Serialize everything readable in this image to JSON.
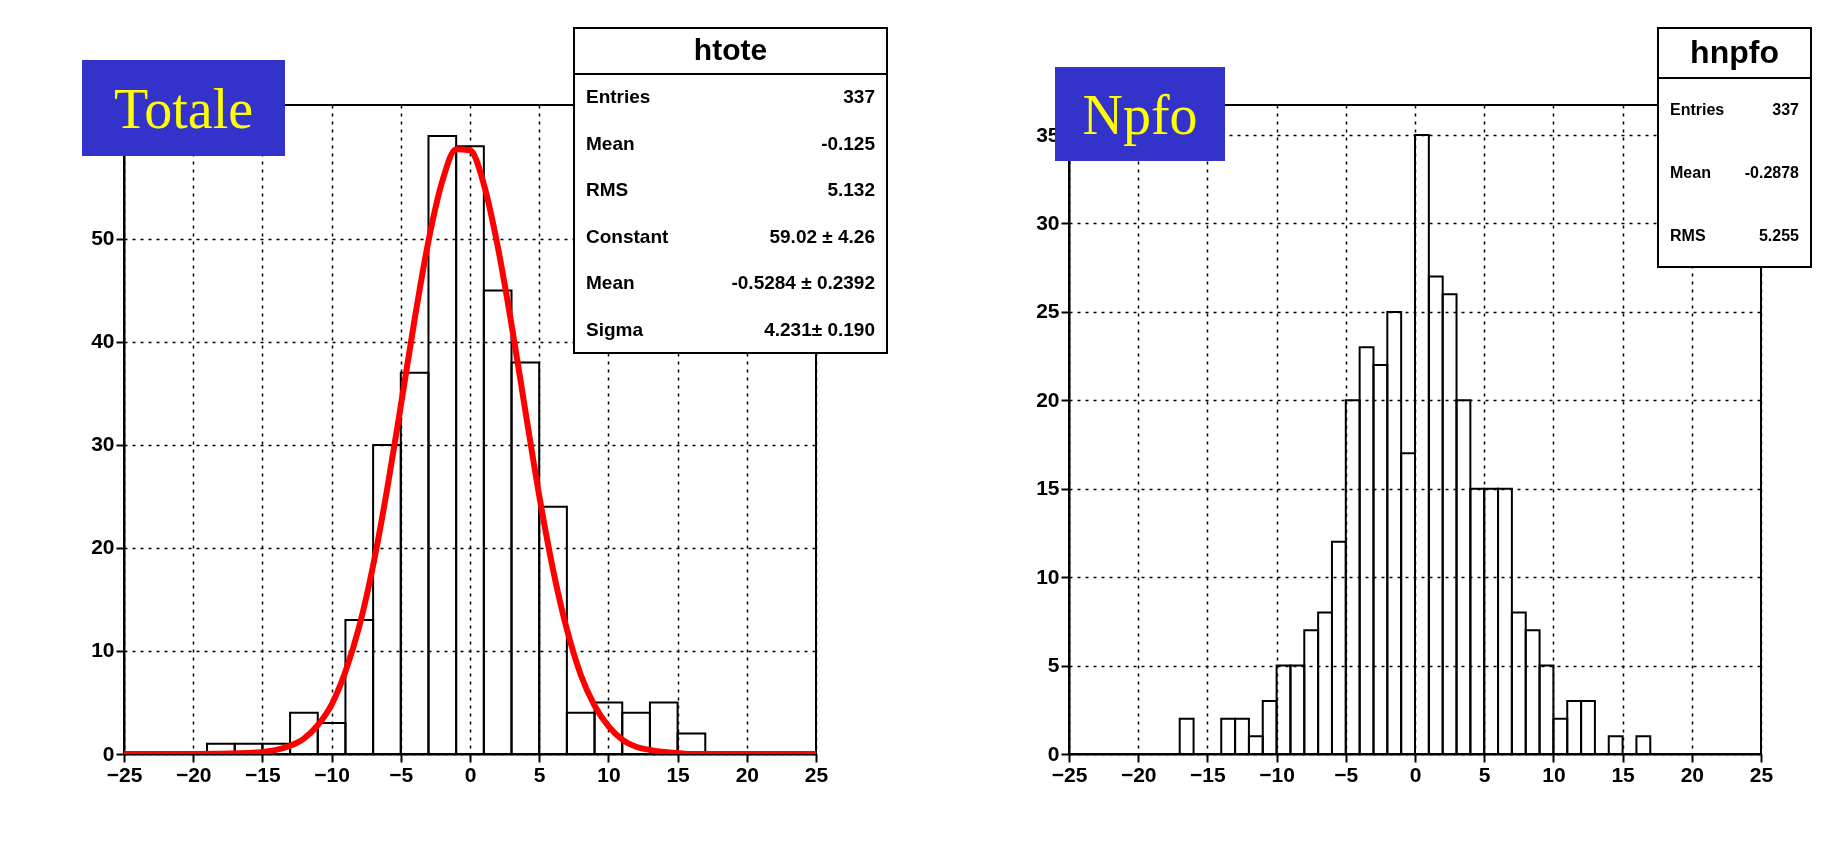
{
  "chart_data": [
    {
      "type": "histogram",
      "title": "Totale",
      "bins": [
        -25,
        -23,
        -21,
        -19,
        -17,
        -15,
        -13,
        -11,
        -9,
        -7,
        -5,
        -3,
        -1,
        1,
        3,
        5,
        7,
        9,
        11,
        13,
        15,
        17,
        19,
        21,
        23,
        25
      ],
      "values": [
        0,
        0,
        0,
        1,
        1,
        1,
        4,
        3,
        13,
        30,
        37,
        60,
        59,
        45,
        38,
        24,
        4,
        5,
        4,
        5,
        2,
        0,
        0,
        0,
        0
      ],
      "color": "#000000",
      "series": [
        {
          "type": "line",
          "color": "#ff0000",
          "x": [
            -25,
            -20,
            -16,
            -15,
            -14,
            -13,
            -12,
            -11,
            -10,
            -9,
            -8,
            -7,
            -6,
            -5,
            -4,
            -3,
            -2,
            -1,
            0,
            1,
            2,
            3,
            4,
            5,
            6,
            7,
            8,
            9,
            10,
            11,
            12,
            13,
            14,
            15,
            16,
            20,
            25
          ],
          "values": [
            0,
            0,
            0.1,
            0.2,
            0.4,
            0.8,
            1.5,
            2.8,
            4.8,
            8.0,
            12.4,
            18.3,
            25.6,
            33.8,
            42.2,
            49.8,
            55.6,
            58.7,
            58.6,
            55.3,
            49.3,
            41.7,
            33.3,
            25.1,
            17.9,
            12.1,
            7.7,
            4.7,
            2.7,
            1.4,
            0.7,
            0.4,
            0.2,
            0.1,
            0,
            0,
            0
          ]
        }
      ],
      "xlim": [
        -25,
        25
      ],
      "xticks": [
        -25,
        -20,
        -15,
        -10,
        -5,
        0,
        5,
        10,
        15,
        20,
        25
      ],
      "ylim": [
        0,
        63
      ],
      "yticks": [
        0,
        10,
        20,
        30,
        40,
        50
      ],
      "grid": true,
      "annotations": [
        "htote",
        "Entries 337",
        "Mean -0.125",
        "RMS 5.132",
        "Constant 59.02 ± 4.26",
        "Mean -0.5284 ± 0.2392",
        "Sigma 4.231± 0.190"
      ]
    },
    {
      "type": "histogram",
      "title": "Npfo",
      "bins": [
        -25,
        -24,
        -23,
        -22,
        -21,
        -20,
        -19,
        -18,
        -17,
        -16,
        -15,
        -14,
        -13,
        -12,
        -11,
        -10,
        -9,
        -8,
        -7,
        -6,
        -5,
        -4,
        -3,
        -2,
        -1,
        0,
        1,
        2,
        3,
        4,
        5,
        6,
        7,
        8,
        9,
        10,
        11,
        12,
        13,
        14,
        15,
        16,
        17,
        18,
        19,
        20,
        21,
        22,
        23,
        24,
        25
      ],
      "values": [
        0,
        0,
        0,
        0,
        0,
        0,
        0,
        0,
        2,
        0,
        0,
        2,
        2,
        1,
        3,
        5,
        5,
        7,
        8,
        12,
        20,
        23,
        22,
        25,
        17,
        35,
        27,
        26,
        20,
        15,
        15,
        15,
        8,
        7,
        5,
        2,
        3,
        3,
        0,
        1,
        0,
        1,
        0,
        0,
        0,
        0,
        0,
        0,
        0,
        0
      ],
      "color": "#000000",
      "xlim": [
        -25,
        25
      ],
      "xticks": [
        -25,
        -20,
        -15,
        -10,
        -5,
        0,
        5,
        10,
        15,
        20,
        25
      ],
      "ylim": [
        0,
        36.7
      ],
      "yticks": [
        0,
        5,
        10,
        15,
        20,
        25,
        30,
        35
      ],
      "grid": true,
      "annotations": [
        "hnpfo",
        "Entries 337",
        "Mean -0.2878",
        "RMS 5.255"
      ]
    }
  ]
}
